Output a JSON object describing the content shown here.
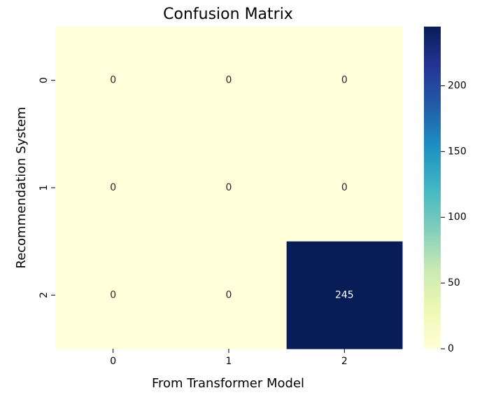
{
  "chart_data": {
    "type": "heatmap",
    "title": "Confusion Matrix",
    "xlabel": "From Transformer Model",
    "ylabel": "Recommendation System",
    "x_categories": [
      "0",
      "1",
      "2"
    ],
    "y_categories": [
      "0",
      "1",
      "2"
    ],
    "values": [
      [
        0,
        0,
        0
      ],
      [
        0,
        0,
        0
      ],
      [
        0,
        0,
        245
      ]
    ],
    "value_range": [
      0,
      245
    ],
    "colormap": "YlGnBu",
    "colormap_stops": [
      "#ffffd9",
      "#edf8b1",
      "#c7e9b4",
      "#7fcdbb",
      "#41b6c4",
      "#1d91c0",
      "#225ea8",
      "#253494",
      "#081d58"
    ],
    "colorbar_ticks": [
      "0",
      "50",
      "100",
      "150",
      "200"
    ],
    "colorbar_tick_values": [
      0,
      50,
      100,
      150,
      200
    ],
    "grid": false,
    "legend": "colorbar-right"
  }
}
